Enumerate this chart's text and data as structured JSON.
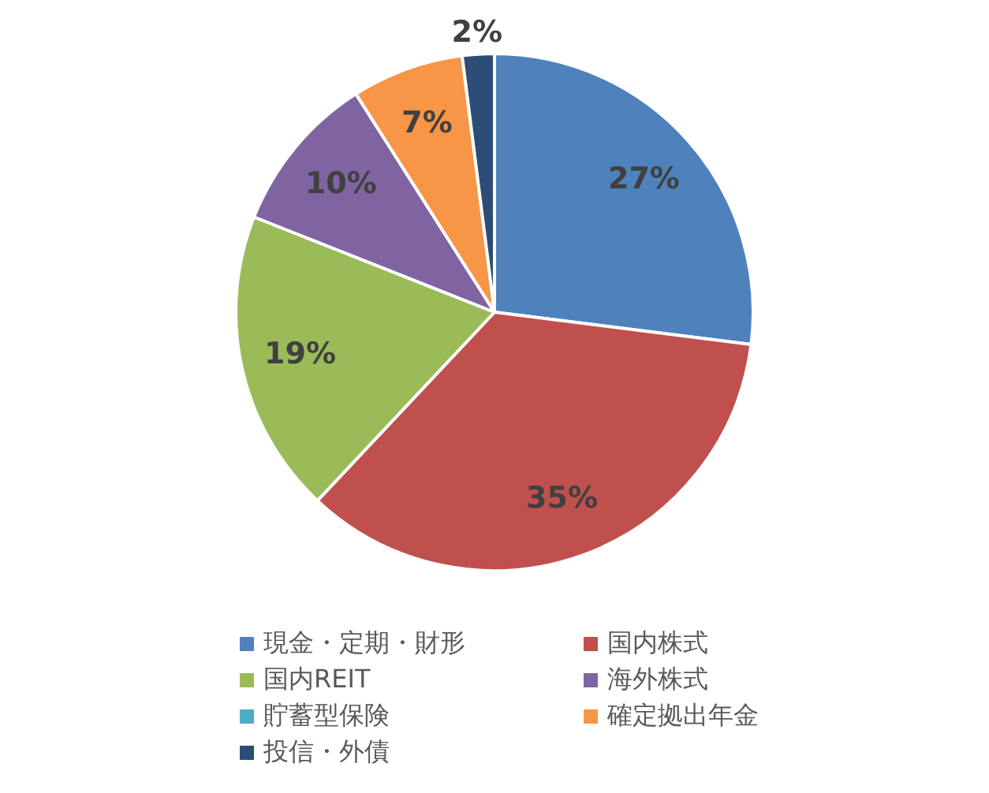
{
  "chart_data": {
    "type": "pie",
    "categories": [
      "現金・定期・財形",
      "国内株式",
      "国内REIT",
      "海外株式",
      "貯蓄型保険",
      "確定拠出年金",
      "投信・外債"
    ],
    "values": [
      27,
      35,
      19,
      10,
      0,
      7,
      2
    ],
    "colors": [
      "#4f81bd",
      "#c0504d",
      "#9bbb59",
      "#8064a2",
      "#4bacc6",
      "#f79646",
      "#2c4d75"
    ],
    "value_labels": [
      "27%",
      "35%",
      "19%",
      "10%",
      null,
      "7%",
      "2%"
    ],
    "legend": "bottom"
  }
}
